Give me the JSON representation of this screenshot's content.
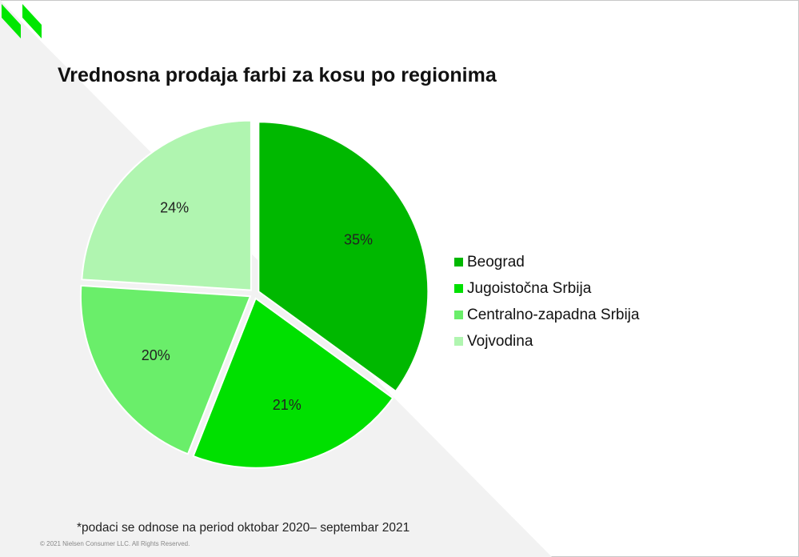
{
  "colors": {
    "background_triangle": "#f2f2f2",
    "logo": "#00e600",
    "slice_gap": "#ffffff"
  },
  "chart_data": {
    "type": "pie",
    "title": "Vrednosna prodaja farbi za kosu po regionima",
    "start_angle_deg": 0,
    "direction": "clockwise",
    "exploded": true,
    "legend_position": "right",
    "slices": [
      {
        "label": "Beograd",
        "value": 35,
        "display": "35%",
        "color": "#00b800"
      },
      {
        "label": "Jugoistočna Srbija",
        "value": 21,
        "display": "21%",
        "color": "#00e000"
      },
      {
        "label": "Centralno-zapadna Srbija",
        "value": 20,
        "display": "20%",
        "color": "#6aee6a"
      },
      {
        "label": "Vojvodina",
        "value": 24,
        "display": "24%",
        "color": "#b0f5b0"
      }
    ]
  },
  "footnote": "*podaci se odnose na period oktobar 2020– septembar 2021",
  "copyright": "© 2021 Nielsen Consumer LLC. All Rights Reserved.",
  "logo": {
    "icon": "nielsen-double-n-icon"
  }
}
